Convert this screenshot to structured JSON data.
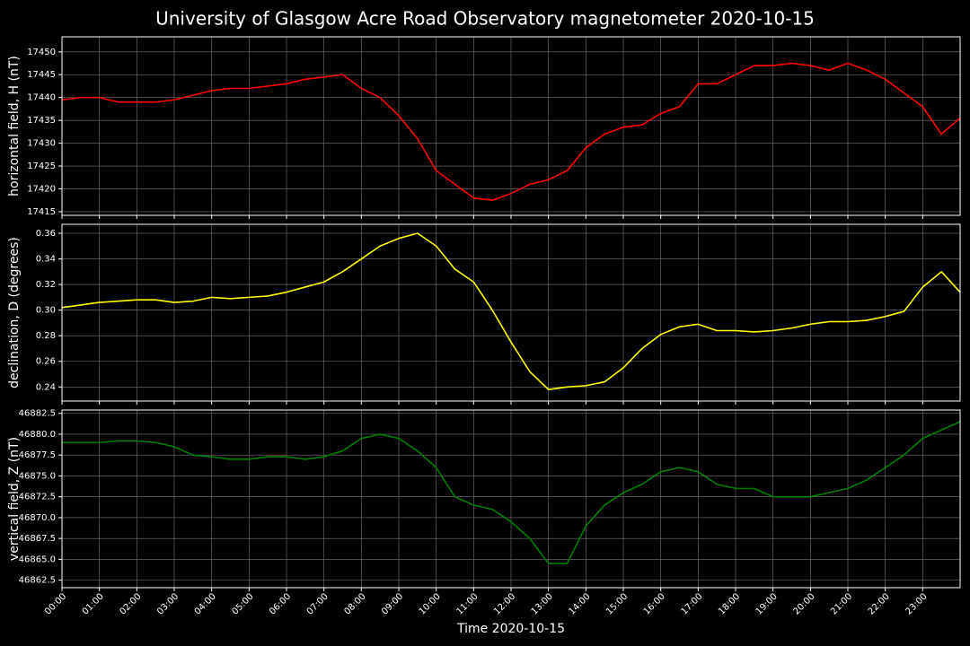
{
  "title": "University of Glasgow Acre Road Observatory magnetometer 2020-10-15",
  "chart_data": [
    {
      "type": "line",
      "ylabel": "horizontal field, H (nT)",
      "color": "#ff0000",
      "grid": true,
      "x": [
        0,
        0.5,
        1,
        1.5,
        2,
        2.5,
        3,
        3.5,
        4,
        4.5,
        5,
        5.5,
        6,
        6.5,
        7,
        7.5,
        8,
        8.5,
        9,
        9.5,
        10,
        10.5,
        11,
        11.5,
        12,
        12.5,
        13,
        13.5,
        14,
        14.5,
        15,
        15.5,
        16,
        16.5,
        17,
        17.5,
        18,
        18.5,
        19,
        19.5,
        20,
        20.5,
        21,
        21.5,
        22,
        22.5,
        23,
        23.5,
        24
      ],
      "values": [
        17439.5,
        17440,
        17440,
        17439,
        17439,
        17439,
        17439.5,
        17440.5,
        17441.5,
        17442,
        17442,
        17442.5,
        17443,
        17444,
        17444.5,
        17445,
        17442,
        17440,
        17436,
        17431,
        17424,
        17421,
        17418,
        17417.5,
        17419,
        17421,
        17422,
        17424,
        17429,
        17432,
        17433.5,
        17434,
        17436.5,
        17438,
        17443,
        17443,
        17445,
        17447,
        17447,
        17447.5,
        17447,
        17446,
        17447.5,
        17446,
        17444,
        17441,
        17438,
        17432,
        17435.5
      ],
      "ylim": [
        17414.2,
        17453.3
      ],
      "yticks": [
        17415,
        17420,
        17425,
        17430,
        17435,
        17440,
        17445,
        17450
      ]
    },
    {
      "type": "line",
      "ylabel": "declination, D (degrees)",
      "color": "#ffff00",
      "grid": true,
      "x": [
        0,
        0.5,
        1,
        1.5,
        2,
        2.5,
        3,
        3.5,
        4,
        4.5,
        5,
        5.5,
        6,
        6.5,
        7,
        7.5,
        8,
        8.5,
        9,
        9.5,
        10,
        10.5,
        11,
        11.5,
        12,
        12.5,
        13,
        13.5,
        14,
        14.5,
        15,
        15.5,
        16,
        16.5,
        17,
        17.5,
        18,
        18.5,
        19,
        19.5,
        20,
        20.5,
        21,
        21.5,
        22,
        22.5,
        23,
        23.5,
        24
      ],
      "values": [
        0.302,
        0.304,
        0.306,
        0.307,
        0.308,
        0.308,
        0.306,
        0.307,
        0.31,
        0.309,
        0.31,
        0.311,
        0.314,
        0.318,
        0.322,
        0.33,
        0.34,
        0.35,
        0.356,
        0.36,
        0.35,
        0.332,
        0.322,
        0.3,
        0.275,
        0.252,
        0.238,
        0.24,
        0.241,
        0.244,
        0.255,
        0.27,
        0.281,
        0.287,
        0.289,
        0.284,
        0.284,
        0.283,
        0.284,
        0.286,
        0.289,
        0.291,
        0.291,
        0.292,
        0.295,
        0.299,
        0.318,
        0.33,
        0.314
      ],
      "ylim": [
        0.229,
        0.367
      ],
      "yticks": [
        0.24,
        0.26,
        0.28,
        {
          "value": 0.3,
          "label": "0.30"
        },
        0.32,
        0.34,
        0.36
      ]
    },
    {
      "type": "line",
      "ylabel": "vertical field, Z (nT)",
      "xlabel": "Time 2020-10-15",
      "color": "#008000",
      "grid": true,
      "x": [
        0,
        0.5,
        1,
        1.5,
        2,
        2.5,
        3,
        3.5,
        4,
        4.5,
        5,
        5.5,
        6,
        6.5,
        7,
        7.5,
        8,
        8.5,
        9,
        9.5,
        10,
        10.5,
        11,
        11.5,
        12,
        12.5,
        13,
        13.5,
        14,
        14.5,
        15,
        15.5,
        16,
        16.5,
        17,
        17.5,
        18,
        18.5,
        19,
        19.5,
        20,
        20.5,
        21,
        21.5,
        22,
        22.5,
        23,
        23.5,
        24
      ],
      "values": [
        46879,
        46879,
        46879,
        46879.2,
        46879.2,
        46879,
        46878.5,
        46877.5,
        46877.3,
        46877,
        46877,
        46877.3,
        46877.3,
        46877,
        46877.3,
        46878,
        46879.5,
        46880,
        46879.5,
        46878,
        46876,
        46872.5,
        46871.5,
        46871,
        46869.5,
        46867.5,
        46864.5,
        46864.5,
        46869,
        46871.5,
        46873,
        46874,
        46875.5,
        46876,
        46875.5,
        46874,
        46873.5,
        46873.5,
        46872.5,
        46872.5,
        46872.5,
        46873,
        46873.5,
        46874.5,
        46876,
        46877.5,
        46879.5,
        46880.5,
        46881.5
      ],
      "ylim": [
        46861.6,
        46882.9
      ],
      "yticks": [
        46862.5,
        {
          "value": 46865,
          "label": "46865.0"
        },
        46867.5,
        {
          "value": 46870,
          "label": "46870.0"
        },
        46872.5,
        {
          "value": 46875,
          "label": "46875.0"
        },
        46877.5,
        {
          "value": 46880,
          "label": "46880.0"
        },
        46882.5
      ],
      "xlim": [
        0,
        24
      ],
      "xticks": [
        {
          "value": 0,
          "label": "00:00"
        },
        {
          "value": 1,
          "label": "01:00"
        },
        {
          "value": 2,
          "label": "02:00"
        },
        {
          "value": 3,
          "label": "03:00"
        },
        {
          "value": 4,
          "label": "04:00"
        },
        {
          "value": 5,
          "label": "05:00"
        },
        {
          "value": 6,
          "label": "06:00"
        },
        {
          "value": 7,
          "label": "07:00"
        },
        {
          "value": 8,
          "label": "08:00"
        },
        {
          "value": 9,
          "label": "09:00"
        },
        {
          "value": 10,
          "label": "10:00"
        },
        {
          "value": 11,
          "label": "11:00"
        },
        {
          "value": 12,
          "label": "12:00"
        },
        {
          "value": 13,
          "label": "13:00"
        },
        {
          "value": 14,
          "label": "14:00"
        },
        {
          "value": 15,
          "label": "15:00"
        },
        {
          "value": 16,
          "label": "16:00"
        },
        {
          "value": 17,
          "label": "17:00"
        },
        {
          "value": 18,
          "label": "18:00"
        },
        {
          "value": 19,
          "label": "19:00"
        },
        {
          "value": 20,
          "label": "20:00"
        },
        {
          "value": 21,
          "label": "21:00"
        },
        {
          "value": 22,
          "label": "22:00"
        },
        {
          "value": 23,
          "label": "23:00"
        }
      ]
    }
  ]
}
